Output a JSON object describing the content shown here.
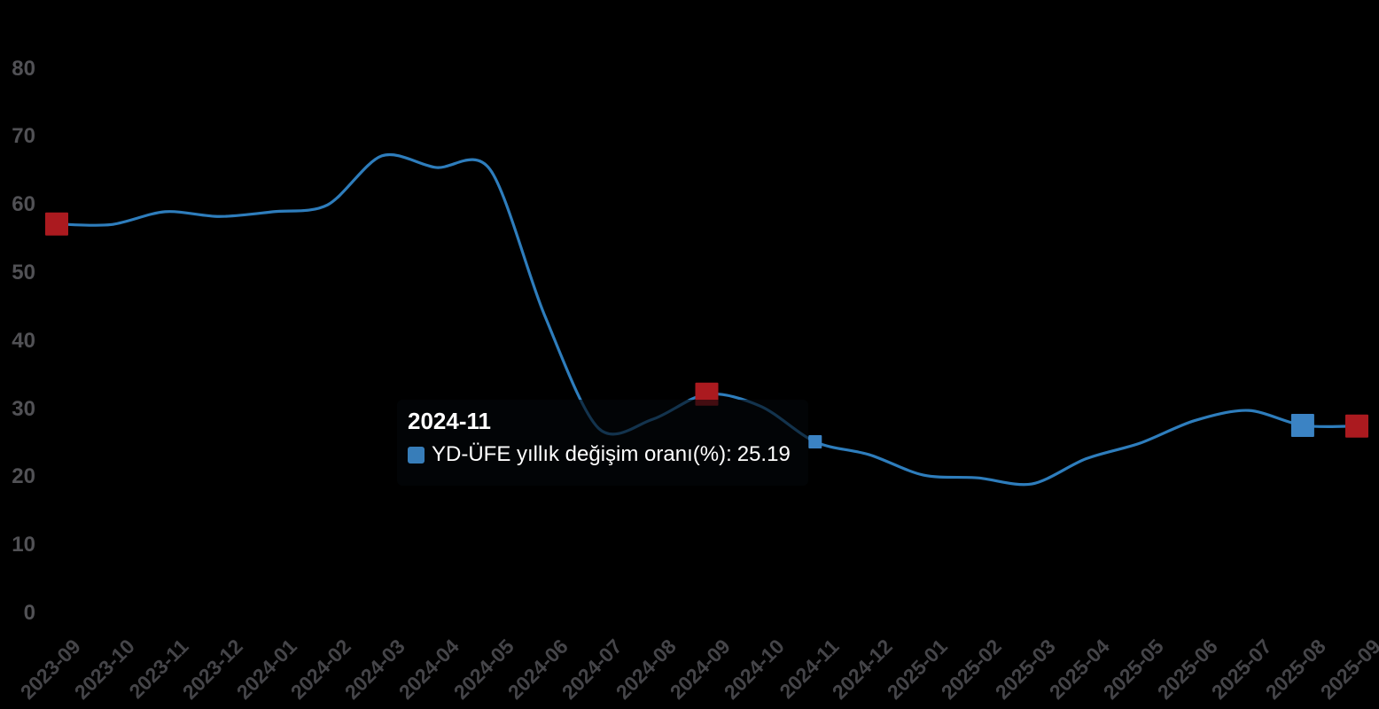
{
  "chart_data": {
    "type": "line",
    "title": "",
    "xlabel": "",
    "ylabel": "",
    "ylim": [
      0,
      80
    ],
    "yticks": [
      0,
      10,
      20,
      30,
      40,
      50,
      60,
      70,
      80
    ],
    "grid": false,
    "legend_position": "none",
    "x": [
      "2023-09",
      "2023-10",
      "2023-11",
      "2023-12",
      "2024-01",
      "2024-02",
      "2024-03",
      "2024-04",
      "2024-05",
      "2024-06",
      "2024-07",
      "2024-08",
      "2024-09",
      "2024-10",
      "2024-11",
      "2024-12",
      "2025-01",
      "2025-02",
      "2025-03",
      "2025-04",
      "2025-05",
      "2025-06",
      "2025-07",
      "2025-08",
      "2025-09"
    ],
    "series": [
      {
        "name": "YD-ÜFE yıllık değişim oranı(%)",
        "values": [
          57.2,
          57.1,
          59.0,
          58.3,
          59.0,
          60.0,
          67.2,
          65.5,
          65.2,
          43.9,
          27.2,
          28.5,
          32.2,
          30.4,
          25.19,
          23.3,
          20.3,
          19.9,
          19.0,
          22.7,
          25.0,
          28.3,
          29.8,
          27.6,
          27.5
        ]
      }
    ],
    "markers": [
      {
        "x": "2023-09",
        "color_key": "red",
        "size": 26
      },
      {
        "x": "2024-09",
        "color_key": "red",
        "size": 26
      },
      {
        "x": "2024-11",
        "color_key": "blue",
        "size": 15
      },
      {
        "x": "2025-08",
        "color_key": "blue",
        "size": 26
      },
      {
        "x": "2025-09",
        "color_key": "red",
        "size": 26
      }
    ]
  },
  "tooltip": {
    "title": "2024-11",
    "series_label": "YD-ÜFE yıllık değişim oranı(%):",
    "value": "25.19"
  },
  "colors": {
    "line": "#2e7dbc",
    "blue": "#3b83c4",
    "red": "#ab1a1f",
    "swatch": "#377db9",
    "y_axis_text": "#515155",
    "x_axis_text": "#454549",
    "tooltip_text": "#ffffff"
  }
}
